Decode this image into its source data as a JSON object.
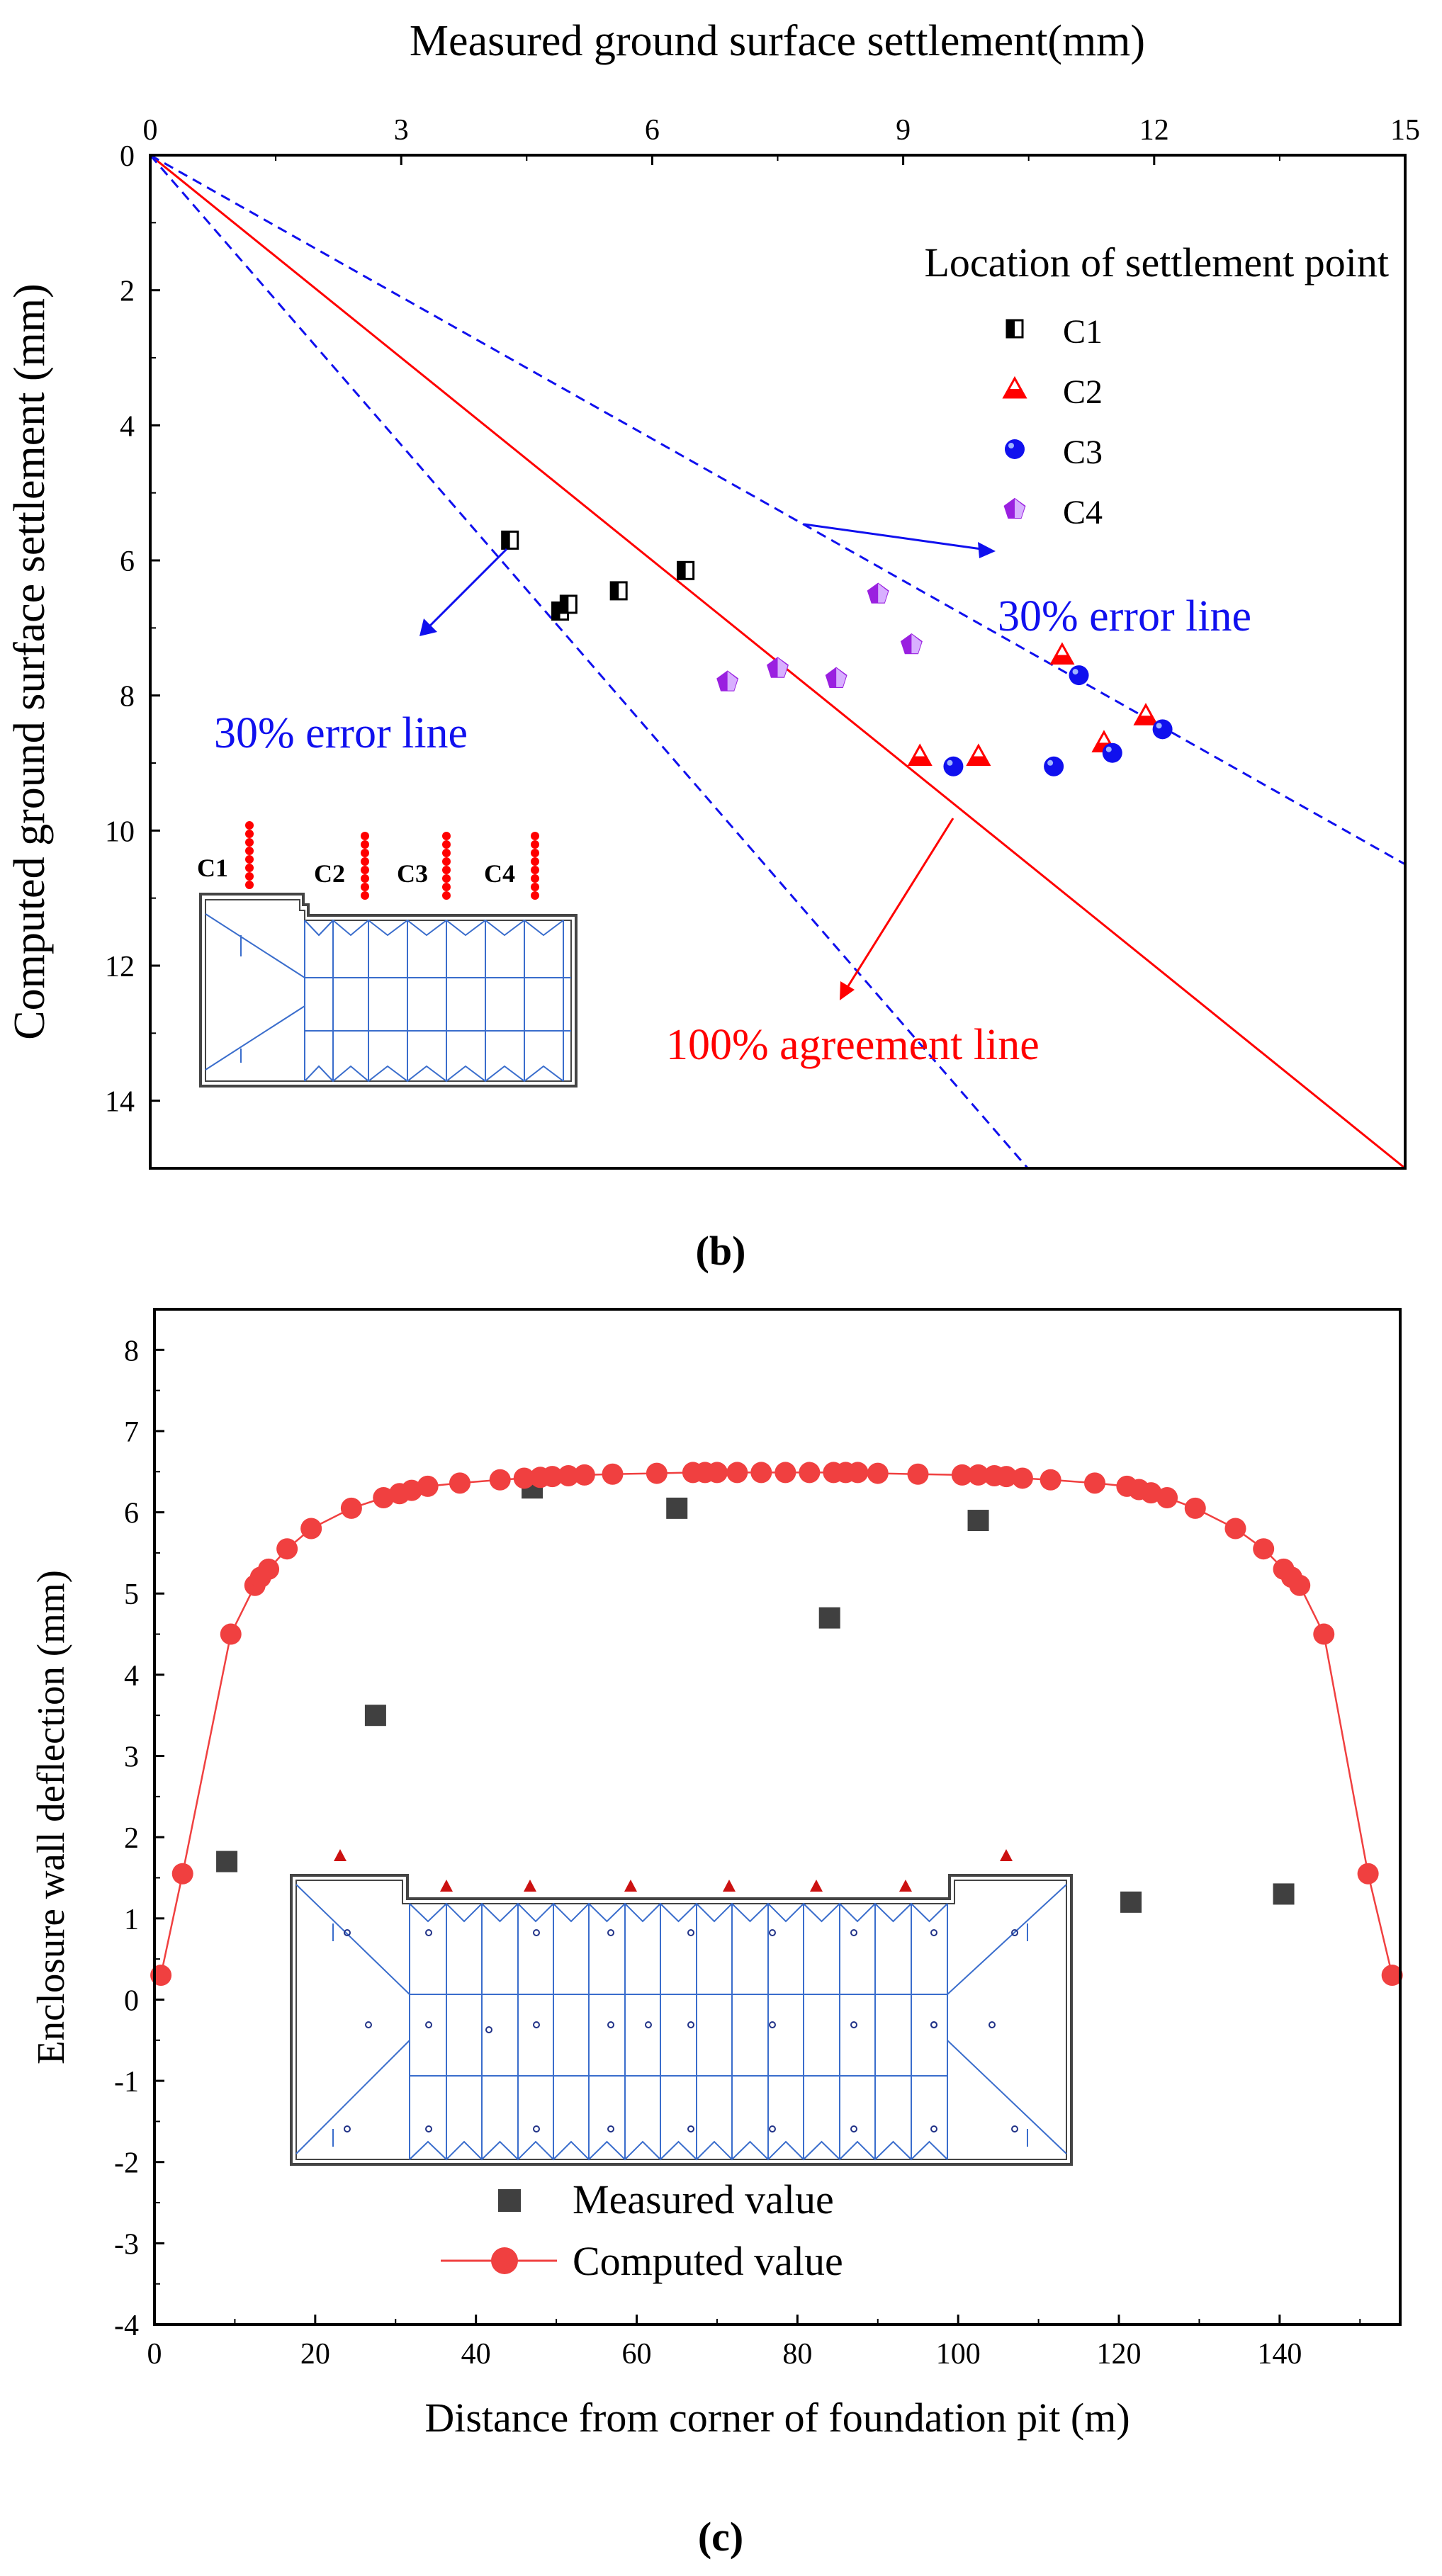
{
  "chart_data": [
    {
      "type": "scatter",
      "panel_label": "(b)",
      "title": "",
      "xlabel": "Measured ground surface settlement(mm)",
      "ylabel": "Computed ground surface settlement (mm)",
      "xlim": [
        0,
        15
      ],
      "ylim": [
        0,
        15
      ],
      "y_inverted": true,
      "x_axis_position": "top",
      "xticks": [
        "0",
        "3",
        "6",
        "9",
        "12",
        "15"
      ],
      "yticks": [
        "0",
        "2",
        "4",
        "6",
        "8",
        "10",
        "12",
        "14"
      ],
      "legend_title": "Location of settlement point",
      "series": [
        {
          "name": "C1",
          "marker": "half-square",
          "color": "#000000",
          "points": [
            [
              4.3,
              5.7
            ],
            [
              4.9,
              6.75
            ],
            [
              5.0,
              6.65
            ],
            [
              5.6,
              6.45
            ],
            [
              6.4,
              6.15
            ]
          ]
        },
        {
          "name": "C2",
          "marker": "triangle",
          "color": "#ff0000",
          "points": [
            [
              9.2,
              8.9
            ],
            [
              9.9,
              8.9
            ],
            [
              10.9,
              7.4
            ],
            [
              11.4,
              8.7
            ],
            [
              11.9,
              8.3
            ]
          ]
        },
        {
          "name": "C3",
          "marker": "circle",
          "color": "#1010ee",
          "points": [
            [
              9.6,
              9.05
            ],
            [
              10.8,
              9.05
            ],
            [
              11.5,
              8.85
            ],
            [
              11.1,
              7.7
            ],
            [
              12.1,
              8.5
            ]
          ]
        },
        {
          "name": "C4",
          "marker": "pentagon",
          "color": "#9a20e0",
          "points": [
            [
              6.9,
              7.8
            ],
            [
              7.5,
              7.6
            ],
            [
              8.2,
              7.75
            ],
            [
              8.7,
              6.5
            ],
            [
              9.1,
              7.25
            ]
          ]
        }
      ],
      "lines": [
        {
          "name": "100% agreement line",
          "slope": 1.0,
          "color": "#ff0000",
          "style": "solid"
        },
        {
          "name": "30% error line (upper)",
          "slope": 0.7,
          "color": "#1010ee",
          "style": "dashed"
        },
        {
          "name": "30% error line (lower)",
          "slope": 1.43,
          "color": "#1010ee",
          "style": "dashed"
        }
      ],
      "annotations": [
        "30% error line",
        "30% error line",
        "100% agreement line"
      ],
      "inset_labels": [
        "C1",
        "C2",
        "C3",
        "C4"
      ]
    },
    {
      "type": "scatter",
      "panel_label": "(c)",
      "title": "",
      "xlabel": "Distance from corner of foundation pit (m)",
      "ylabel": "Enclosure wall deflection (mm)",
      "xlim": [
        0,
        155
      ],
      "ylim": [
        -4,
        8.5
      ],
      "xticks": [
        "0",
        "20",
        "40",
        "60",
        "80",
        "100",
        "120",
        "140"
      ],
      "yticks": [
        "-4",
        "-3",
        "-2",
        "-1",
        "0",
        "1",
        "2",
        "3",
        "4",
        "5",
        "6",
        "7",
        "8"
      ],
      "series": [
        {
          "name": "Measured value",
          "marker": "square",
          "color": "#404040",
          "points": [
            [
              9,
              1.7
            ],
            [
              27.5,
              3.5
            ],
            [
              47,
              6.3
            ],
            [
              65,
              6.05
            ],
            [
              84,
              4.7
            ],
            [
              102.5,
              5.9
            ],
            [
              121.5,
              1.2
            ],
            [
              140.5,
              1.3
            ]
          ]
        },
        {
          "name": "Computed value",
          "marker": "circle",
          "color": "#f04040",
          "connect": true,
          "points": [
            [
              0.8,
              0.3
            ],
            [
              3.5,
              1.55
            ],
            [
              9.5,
              4.5
            ],
            [
              12.5,
              5.1
            ],
            [
              13.2,
              5.2
            ],
            [
              14.2,
              5.3
            ],
            [
              16.5,
              5.55
            ],
            [
              19.5,
              5.8
            ],
            [
              24.5,
              6.05
            ],
            [
              28.5,
              6.18
            ],
            [
              30.5,
              6.23
            ],
            [
              32,
              6.27
            ],
            [
              34,
              6.32
            ],
            [
              38,
              6.36
            ],
            [
              43,
              6.4
            ],
            [
              46,
              6.42
            ],
            [
              48,
              6.43
            ],
            [
              49.5,
              6.44
            ],
            [
              51.5,
              6.45
            ],
            [
              53.5,
              6.46
            ],
            [
              57,
              6.47
            ],
            [
              62.5,
              6.48
            ],
            [
              67,
              6.49
            ],
            [
              68.5,
              6.49
            ],
            [
              70,
              6.49
            ],
            [
              72.5,
              6.49
            ],
            [
              75.5,
              6.49
            ],
            [
              78.5,
              6.49
            ],
            [
              81.5,
              6.49
            ],
            [
              84.5,
              6.49
            ],
            [
              86,
              6.49
            ],
            [
              87.5,
              6.49
            ],
            [
              90,
              6.48
            ],
            [
              95,
              6.47
            ],
            [
              100.5,
              6.46
            ],
            [
              102.5,
              6.46
            ],
            [
              104.5,
              6.45
            ],
            [
              106,
              6.44
            ],
            [
              108,
              6.42
            ],
            [
              111.5,
              6.4
            ],
            [
              117,
              6.36
            ],
            [
              121,
              6.32
            ],
            [
              122.5,
              6.28
            ],
            [
              124,
              6.24
            ],
            [
              126,
              6.18
            ],
            [
              129.5,
              6.05
            ],
            [
              134.5,
              5.8
            ],
            [
              138,
              5.55
            ],
            [
              140.5,
              5.3
            ],
            [
              141.5,
              5.2
            ],
            [
              142.5,
              5.1
            ],
            [
              145.5,
              4.5
            ],
            [
              151,
              1.55
            ],
            [
              154,
              0.3
            ]
          ]
        }
      ],
      "legend": [
        "Measured value",
        "Computed value"
      ]
    }
  ]
}
